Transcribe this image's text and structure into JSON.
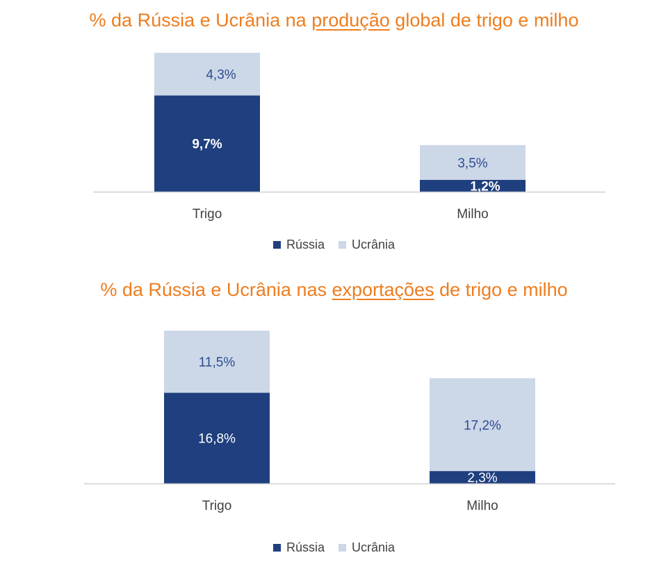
{
  "colors": {
    "russia": "#1F3F7E",
    "ukraine": "#CCD7E8",
    "title": "#EE7D1F",
    "axis": "#D0D0D0",
    "label_dark": "#2D4E8E",
    "label_light": "#FFFFFF",
    "category_text": "#404040"
  },
  "legend": {
    "russia": "Rússia",
    "ukraine": "Ucrânia"
  },
  "chart_data": [
    {
      "type": "bar",
      "stacked": true,
      "title": {
        "pre": "% da Rússia e Ucrânia na ",
        "underlined": "produção",
        "post": " global de trigo e milho"
      },
      "categories": [
        "Trigo",
        "Milho"
      ],
      "series": [
        {
          "name": "Rússia",
          "values": [
            9.7,
            1.2
          ],
          "labels": [
            "9,7%",
            "1,2%"
          ]
        },
        {
          "name": "Ucrânia",
          "values": [
            4.3,
            3.5
          ],
          "labels": [
            "4,3%",
            "3,5%"
          ]
        }
      ],
      "legend_position": "bottom",
      "grid": false
    },
    {
      "type": "bar",
      "stacked": true,
      "title": {
        "pre": "% da Rússia e Ucrânia nas ",
        "underlined": "exportações",
        "post": " de  trigo e milho"
      },
      "categories": [
        "Trigo",
        "Milho"
      ],
      "series": [
        {
          "name": "Rússia",
          "values": [
            16.8,
            2.3
          ],
          "labels": [
            "16,8%",
            "2,3%"
          ]
        },
        {
          "name": "Ucrânia",
          "values": [
            11.5,
            17.2
          ],
          "labels": [
            "11,5%",
            "17,2%"
          ]
        }
      ],
      "legend_position": "bottom",
      "grid": false
    }
  ]
}
